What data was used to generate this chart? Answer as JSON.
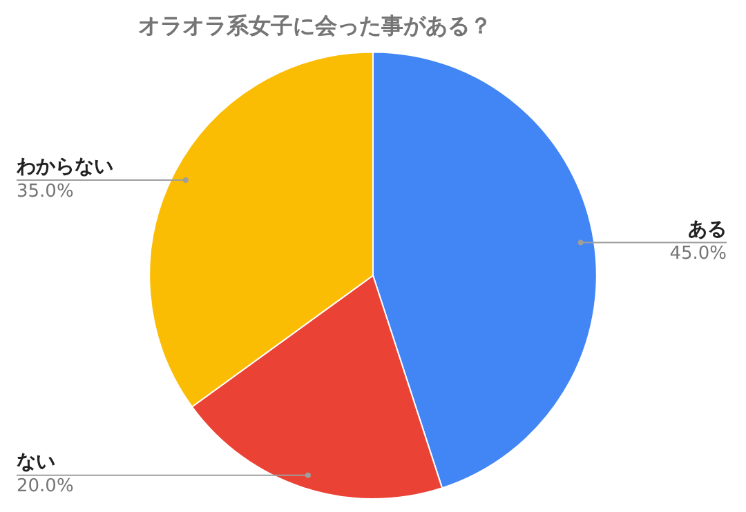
{
  "chart_data": {
    "type": "pie",
    "title": "オラオラ系女子に会った事がある？",
    "categories": [
      "ある",
      "ない",
      "わからない"
    ],
    "values": [
      45,
      20,
      35
    ],
    "colors": [
      "#4285f4",
      "#ea4335",
      "#fbbc04"
    ],
    "value_labels": [
      "45.0%",
      "20.0%",
      "35.0%"
    ],
    "legend": false
  }
}
